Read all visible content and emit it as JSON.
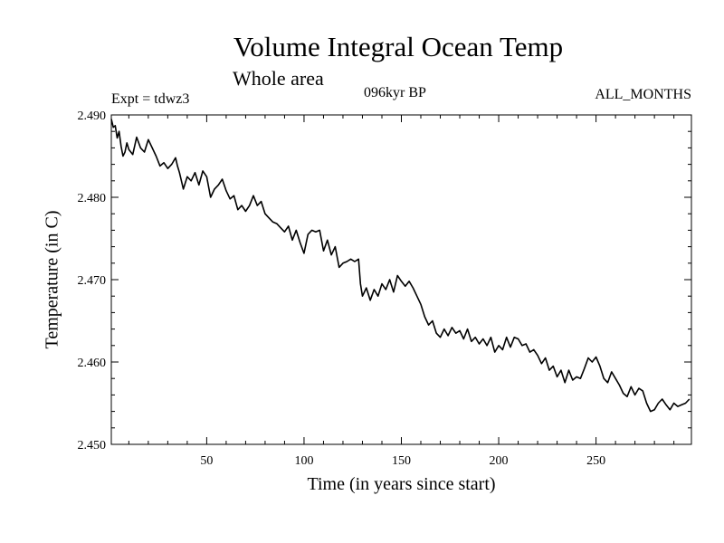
{
  "chart_data": {
    "type": "line",
    "title": "Volume Integral Ocean Temp",
    "subtitle": "Whole area",
    "annotations": {
      "left": "Expt = tdwz3",
      "center": "096kyr BP",
      "right": "ALL_MONTHS"
    },
    "xlabel": "Time (in years since start)",
    "ylabel": "Temperature (in C)",
    "xlim": [
      1,
      299
    ],
    "ylim": [
      2.45,
      2.49
    ],
    "x_ticks": [
      50,
      100,
      150,
      200,
      250
    ],
    "x_tick_labels": [
      "50",
      "100",
      "150",
      "200",
      "250"
    ],
    "y_ticks": [
      2.45,
      2.46,
      2.47,
      2.48,
      2.49
    ],
    "y_tick_labels": [
      "2.450",
      "2.460",
      "2.470",
      "2.480",
      "2.490"
    ],
    "grid": false,
    "series": [
      {
        "x": [
          1,
          2,
          3,
          4,
          5,
          6,
          7,
          8,
          9,
          10,
          12,
          14,
          16,
          18,
          20,
          22,
          24,
          26,
          28,
          30,
          32,
          34,
          35,
          36,
          38,
          40,
          42,
          44,
          46,
          48,
          50,
          52,
          54,
          56,
          58,
          60,
          62,
          64,
          66,
          68,
          70,
          72,
          74,
          76,
          78,
          80,
          82,
          84,
          86,
          88,
          90,
          92,
          94,
          96,
          98,
          100,
          102,
          104,
          106,
          108,
          110,
          112,
          114,
          116,
          118,
          120,
          122,
          124,
          126,
          128,
          129,
          130,
          132,
          134,
          136,
          138,
          140,
          142,
          144,
          146,
          148,
          150,
          152,
          154,
          156,
          158,
          160,
          162,
          164,
          166,
          168,
          170,
          172,
          174,
          176,
          178,
          180,
          182,
          184,
          186,
          188,
          190,
          192,
          194,
          196,
          198,
          200,
          202,
          204,
          206,
          208,
          210,
          212,
          214,
          216,
          218,
          220,
          222,
          224,
          226,
          228,
          230,
          232,
          234,
          236,
          238,
          240,
          242,
          244,
          246,
          248,
          250,
          252,
          254,
          256,
          258,
          260,
          262,
          264,
          266,
          268,
          270,
          272,
          274,
          276,
          278,
          280,
          282,
          284,
          286,
          288,
          290,
          292,
          294,
          296,
          298
        ],
        "y": [
          2.4895,
          2.4885,
          2.4887,
          2.4872,
          2.488,
          2.4862,
          2.485,
          2.4855,
          2.4866,
          2.4858,
          2.4852,
          2.4873,
          2.486,
          2.4855,
          2.487,
          2.486,
          2.485,
          2.4838,
          2.4842,
          2.4835,
          2.484,
          2.4848,
          2.4838,
          2.483,
          2.481,
          2.4825,
          2.482,
          2.483,
          2.4815,
          2.4832,
          2.4825,
          2.48,
          2.481,
          2.4815,
          2.4822,
          2.4808,
          2.4798,
          2.4802,
          2.4785,
          2.479,
          2.4783,
          2.479,
          2.4802,
          2.479,
          2.4795,
          2.478,
          2.4775,
          2.477,
          2.4768,
          2.4763,
          2.4758,
          2.4765,
          2.4748,
          2.476,
          2.4745,
          2.4732,
          2.4755,
          2.476,
          2.4758,
          2.476,
          2.4735,
          2.4748,
          2.473,
          2.474,
          2.4715,
          2.472,
          2.4722,
          2.4725,
          2.4722,
          2.4725,
          2.4695,
          2.468,
          2.469,
          2.4675,
          2.4688,
          2.468,
          2.4695,
          2.4688,
          2.47,
          2.4685,
          2.4705,
          2.4698,
          2.4692,
          2.4698,
          2.469,
          2.468,
          2.467,
          2.4655,
          2.4645,
          2.465,
          2.4635,
          2.463,
          2.464,
          2.4632,
          2.4642,
          2.4635,
          2.4638,
          2.4628,
          2.464,
          2.4625,
          2.463,
          2.4622,
          2.4628,
          2.462,
          2.463,
          2.4612,
          2.462,
          2.4615,
          2.463,
          2.4618,
          2.463,
          2.4628,
          2.462,
          2.4622,
          2.4612,
          2.4615,
          2.4608,
          2.4598,
          2.4605,
          2.459,
          2.4595,
          2.4582,
          2.459,
          2.4575,
          2.459,
          2.4578,
          2.4582,
          2.458,
          2.4592,
          2.4605,
          2.46,
          2.4606,
          2.4595,
          2.458,
          2.4575,
          2.4588,
          2.458,
          2.4572,
          2.4562,
          2.4558,
          2.457,
          2.456,
          2.4568,
          2.4565,
          2.455,
          2.454,
          2.4542,
          2.455,
          2.4555,
          2.4548,
          2.4542,
          2.455,
          2.4546,
          2.4548,
          2.455,
          2.4555
        ]
      }
    ]
  }
}
